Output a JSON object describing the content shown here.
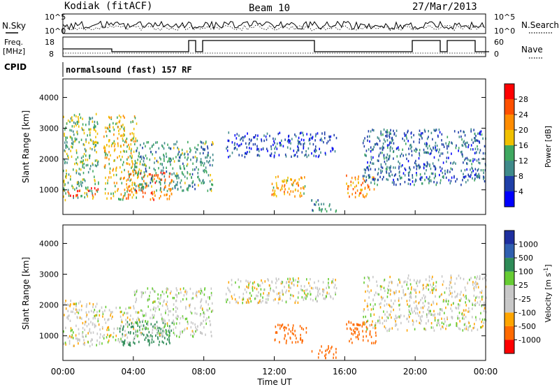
{
  "header": {
    "station": "Kodiak (fitACF)",
    "beam": "Beam 10",
    "date": "27/Mar/2013"
  },
  "param_panels": {
    "nsky_label": "N.Sky",
    "nsearch_label": "N.Search",
    "freq_label_1": "Freq.",
    "freq_label_2": "[MHz]",
    "nave_label": "Nave",
    "cpid_label": "CPID",
    "noise_ticks_left": [
      "10^5",
      "10^0"
    ],
    "noise_ticks_right": [
      "10^5",
      "10^0"
    ],
    "freq_ticks": [
      "18",
      "8"
    ],
    "nave_ticks": [
      "60",
      "0"
    ],
    "cpid_text": "normalsound (fast) 157 RF"
  },
  "colors": {
    "power_scale": [
      "#0000ff",
      "#1f3fa8",
      "#3f8a8a",
      "#3fa860",
      "#f0c000",
      "#ff8c00",
      "#ff5000",
      "#ff0000"
    ],
    "velocity_scale": [
      "#ff0000",
      "#ff6a00",
      "#ffa500",
      "#c8c8c8",
      "#c8c8c8",
      "#66cc33",
      "#2e8b57",
      "#3060b0",
      "#1e2f9f"
    ]
  },
  "chart_data": [
    {
      "type": "heatmap",
      "name": "power-panel",
      "ylabel": "Slant Range [km]",
      "ylim": [
        200,
        4600
      ],
      "yticks": [
        "4000",
        "3000",
        "2000",
        "1000"
      ],
      "xlim": [
        "00:00",
        "24:00"
      ],
      "colorbar": {
        "label": "Power [dB]",
        "ticks": [
          "28",
          "24",
          "20",
          "16",
          "12",
          "8",
          "4"
        ],
        "range": [
          0,
          32
        ]
      },
      "regions": [
        {
          "t0": 0.0,
          "t1": 2.0,
          "r0": 700,
          "r1": 3500,
          "power": 14
        },
        {
          "t0": 0.2,
          "t1": 2.0,
          "r0": 800,
          "r1": 1100,
          "power": 28
        },
        {
          "t0": 2.3,
          "t1": 4.2,
          "r0": 700,
          "r1": 3500,
          "power": 18
        },
        {
          "t0": 3.5,
          "t1": 6.2,
          "r0": 700,
          "r1": 1600,
          "power": 24
        },
        {
          "t0": 4.0,
          "t1": 8.5,
          "r0": 1000,
          "r1": 2600,
          "power": 12
        },
        {
          "t0": 9.2,
          "t1": 15.5,
          "r0": 2100,
          "r1": 2900,
          "power": 6
        },
        {
          "t0": 11.8,
          "t1": 13.8,
          "r0": 800,
          "r1": 1500,
          "power": 20
        },
        {
          "t0": 14.0,
          "t1": 15.5,
          "r0": 300,
          "r1": 700,
          "power": 12
        },
        {
          "t0": 16.0,
          "t1": 17.8,
          "r0": 800,
          "r1": 1500,
          "power": 22
        },
        {
          "t0": 17.0,
          "t1": 24.0,
          "r0": 1200,
          "r1": 3000,
          "power": 8
        }
      ]
    },
    {
      "type": "heatmap",
      "name": "velocity-panel",
      "ylabel": "Slant Range [km]",
      "ylim": [
        200,
        4600
      ],
      "yticks": [
        "4000",
        "3000",
        "2000",
        "1000"
      ],
      "xlabel": "Time UT",
      "xticks": [
        "00:00",
        "04:00",
        "08:00",
        "12:00",
        "16:00",
        "20:00",
        "00:00"
      ],
      "xlim": [
        "00:00",
        "24:00"
      ],
      "colorbar": {
        "label": "Velocity [m s",
        "label_sup": "-1",
        "label_close": "]",
        "ticks": [
          "1000",
          "500",
          "100",
          "25",
          "-25",
          "-100",
          "-500",
          "-1000"
        ]
      },
      "regions": [
        {
          "t0": 0.0,
          "t1": 2.2,
          "r0": 700,
          "r1": 2200,
          "velocity": 0
        },
        {
          "t0": 2.2,
          "t1": 4.0,
          "r0": 800,
          "r1": 2000,
          "velocity": 0
        },
        {
          "t0": 3.2,
          "t1": 6.2,
          "r0": 700,
          "r1": 1500,
          "velocity": 300
        },
        {
          "t0": 4.0,
          "t1": 8.5,
          "r0": 1000,
          "r1": 2600,
          "velocity": 10
        },
        {
          "t0": 9.2,
          "t1": 15.5,
          "r0": 2100,
          "r1": 2900,
          "velocity": 0
        },
        {
          "t0": 12.0,
          "t1": 13.8,
          "r0": 800,
          "r1": 1400,
          "velocity": -300
        },
        {
          "t0": 14.0,
          "t1": 15.5,
          "r0": 300,
          "r1": 700,
          "velocity": -200
        },
        {
          "t0": 16.0,
          "t1": 17.8,
          "r0": 800,
          "r1": 1500,
          "velocity": -300
        },
        {
          "t0": 17.0,
          "t1": 24.0,
          "r0": 1200,
          "r1": 3000,
          "velocity": 0
        }
      ]
    }
  ]
}
